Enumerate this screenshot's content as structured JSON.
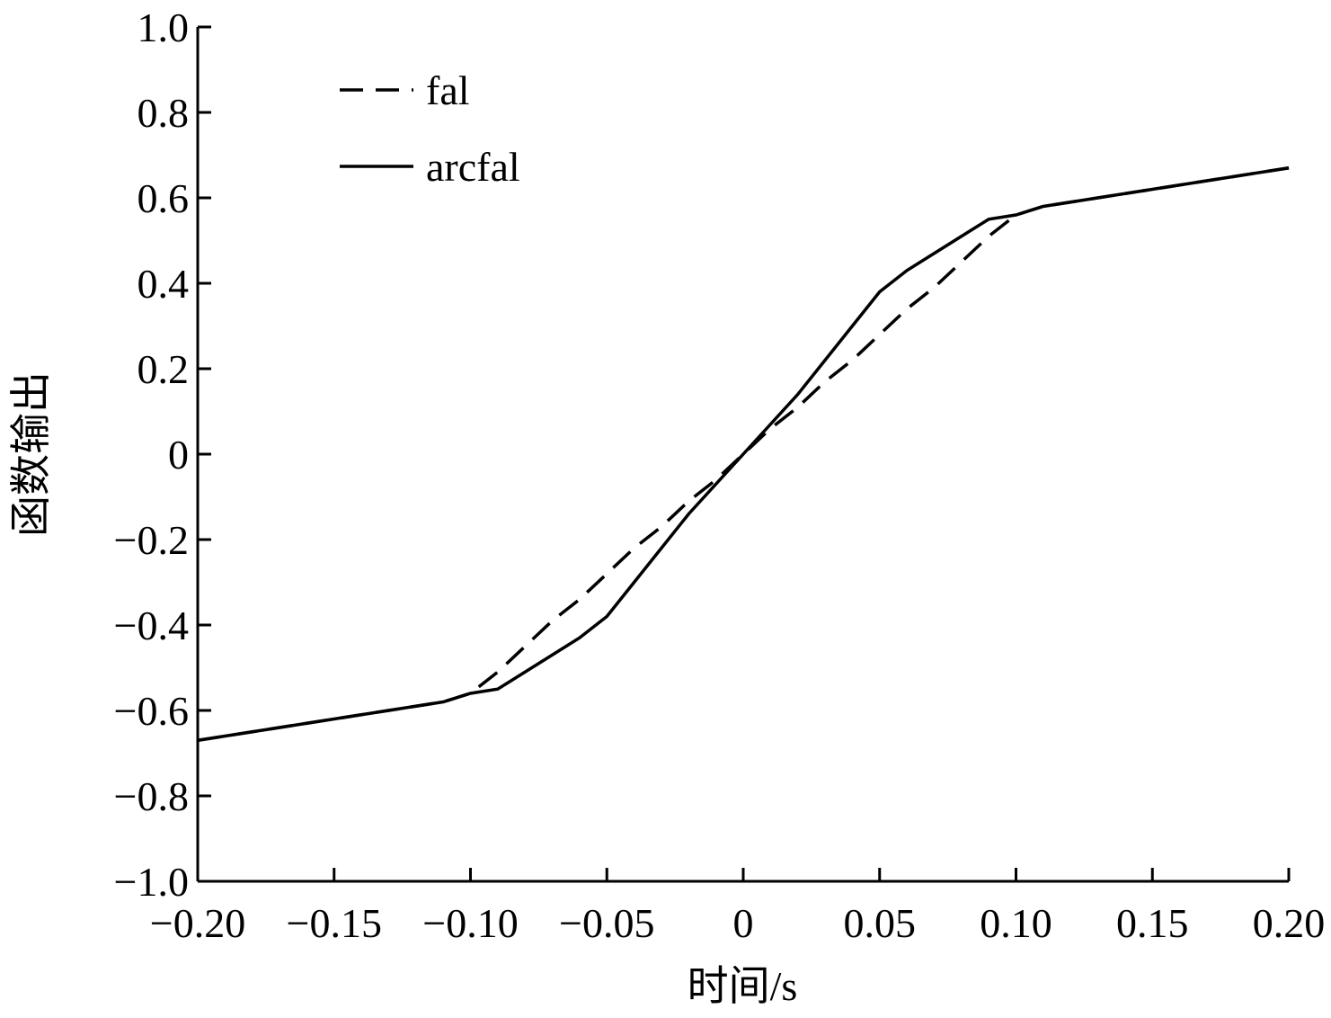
{
  "chart_data": {
    "type": "line",
    "xlabel": "时间/s",
    "ylabel": "函数输出",
    "x": [
      -0.2,
      -0.19,
      -0.18,
      -0.17,
      -0.16,
      -0.15,
      -0.14,
      -0.13,
      -0.12,
      -0.11,
      -0.1,
      -0.09,
      -0.08,
      -0.07,
      -0.06,
      -0.05,
      -0.04,
      -0.03,
      -0.02,
      -0.01,
      0,
      0.01,
      0.02,
      0.03,
      0.04,
      0.05,
      0.06,
      0.07,
      0.08,
      0.09,
      0.1,
      0.11,
      0.12,
      0.13,
      0.14,
      0.15,
      0.16,
      0.17,
      0.18,
      0.19,
      0.2
    ],
    "series": [
      {
        "name": "fal",
        "color": "#000000",
        "dash": true,
        "values": [
          -0.67,
          -0.66,
          -0.65,
          -0.64,
          -0.63,
          -0.62,
          -0.61,
          -0.6,
          -0.59,
          -0.58,
          -0.56,
          -0.51,
          -0.45,
          -0.39,
          -0.34,
          -0.28,
          -0.22,
          -0.17,
          -0.11,
          -0.06,
          0,
          0.06,
          0.11,
          0.17,
          0.22,
          0.28,
          0.34,
          0.39,
          0.45,
          0.51,
          0.56,
          0.58,
          0.59,
          0.6,
          0.61,
          0.62,
          0.63,
          0.64,
          0.65,
          0.66,
          0.67
        ]
      },
      {
        "name": "arcfal",
        "color": "#000000",
        "dash": false,
        "values": [
          -0.67,
          -0.66,
          -0.65,
          -0.64,
          -0.63,
          -0.62,
          -0.61,
          -0.6,
          -0.59,
          -0.58,
          -0.56,
          -0.55,
          -0.51,
          -0.47,
          -0.43,
          -0.38,
          -0.3,
          -0.22,
          -0.14,
          -0.07,
          0,
          0.07,
          0.14,
          0.22,
          0.3,
          0.38,
          0.43,
          0.47,
          0.51,
          0.55,
          0.56,
          0.58,
          0.59,
          0.6,
          0.61,
          0.62,
          0.63,
          0.64,
          0.65,
          0.66,
          0.67
        ]
      }
    ],
    "xlim": [
      -0.2,
      0.2
    ],
    "xticks": [
      {
        "value": -0.2,
        "label": "−0.20"
      },
      {
        "value": -0.15,
        "label": "−0.15"
      },
      {
        "value": -0.1,
        "label": "−0.10"
      },
      {
        "value": -0.05,
        "label": "−0.05"
      },
      0,
      0.05,
      {
        "value": 0.1,
        "label": "0.10"
      },
      0.15,
      {
        "value": 0.2,
        "label": "0.20"
      }
    ],
    "ylim": [
      -1,
      1
    ],
    "yticks": [
      {
        "value": -1,
        "label": "−1.0"
      },
      {
        "value": -0.8,
        "label": "−0.8"
      },
      {
        "value": -0.6,
        "label": "−0.6"
      },
      {
        "value": -0.4,
        "label": "−0.4"
      },
      {
        "value": -0.2,
        "label": "−0.2"
      },
      0,
      0.2,
      0.4,
      0.6,
      0.8,
      {
        "value": 1,
        "label": "1.0"
      }
    ],
    "grid": false,
    "legend": "upper left"
  }
}
